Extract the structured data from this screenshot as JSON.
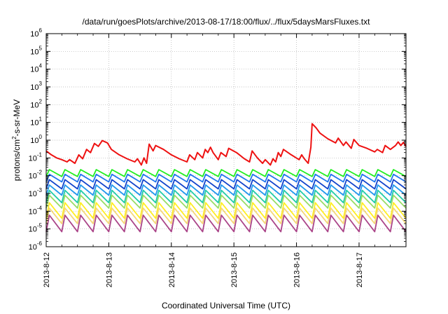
{
  "chart_data": {
    "type": "line",
    "title": "/data/run/goesPlots/archive/2013-08-17/18:00/flux/../flux/5daysMarsFluxes.txt",
    "xlabel": "Coordinated Universal Time (UTC)",
    "ylabel_prefix": "protons/cm",
    "ylabel_sup": "2",
    "ylabel_suffix": "-s-sr-MeV",
    "y_scale": "log",
    "ylim": [
      1e-06,
      1000000
    ],
    "xlim": [
      "2013-08-12T00:00",
      "2013-08-17T18:00"
    ],
    "grid": true,
    "legend": "none",
    "x_ticks": [
      "2013-8-12",
      "2013-8-13",
      "2013-8-14",
      "2013-8-15",
      "2013-8-16",
      "2013-8-17"
    ],
    "y_ticks": [
      {
        "base": "10",
        "exp": "-6"
      },
      {
        "base": "10",
        "exp": "-5"
      },
      {
        "base": "10",
        "exp": "-4"
      },
      {
        "base": "10",
        "exp": "-3"
      },
      {
        "base": "10",
        "exp": "-2"
      },
      {
        "base": "10",
        "exp": "-1"
      },
      {
        "base": "10",
        "exp": "0"
      },
      {
        "base": "10",
        "exp": "1"
      },
      {
        "base": "10",
        "exp": "2"
      },
      {
        "base": "10",
        "exp": "3"
      },
      {
        "base": "10",
        "exp": "4"
      },
      {
        "base": "10",
        "exp": "5"
      },
      {
        "base": "10",
        "exp": "6"
      }
    ],
    "series": [
      {
        "color": "#ee1111",
        "width": 2,
        "points": [
          [
            "2013-08-12T00:00",
            0.25
          ],
          [
            "2013-08-12T02:00",
            0.15
          ],
          [
            "2013-08-12T04:00",
            0.1
          ],
          [
            "2013-08-12T06:00",
            0.08
          ],
          [
            "2013-08-12T08:00",
            0.06
          ],
          [
            "2013-08-12T09:00",
            0.08
          ],
          [
            "2013-08-12T11:00",
            0.05
          ],
          [
            "2013-08-12T12:30",
            0.15
          ],
          [
            "2013-08-12T14:00",
            0.09
          ],
          [
            "2013-08-12T15:30",
            0.3
          ],
          [
            "2013-08-12T17:00",
            0.2
          ],
          [
            "2013-08-12T18:30",
            0.65
          ],
          [
            "2013-08-12T20:00",
            0.45
          ],
          [
            "2013-08-12T21:30",
            0.95
          ],
          [
            "2013-08-12T23:30",
            0.7
          ],
          [
            "2013-08-13T01:00",
            0.3
          ],
          [
            "2013-08-13T04:00",
            0.15
          ],
          [
            "2013-08-13T07:00",
            0.09
          ],
          [
            "2013-08-13T10:00",
            0.06
          ],
          [
            "2013-08-13T11:00",
            0.09
          ],
          [
            "2013-08-13T12:30",
            0.04
          ],
          [
            "2013-08-13T13:30",
            0.1
          ],
          [
            "2013-08-13T14:30",
            0.05
          ],
          [
            "2013-08-13T15:30",
            0.6
          ],
          [
            "2013-08-13T17:00",
            0.25
          ],
          [
            "2013-08-13T18:00",
            0.5
          ],
          [
            "2013-08-13T21:00",
            0.3
          ],
          [
            "2013-08-14T00:00",
            0.15
          ],
          [
            "2013-08-14T03:00",
            0.09
          ],
          [
            "2013-08-14T06:00",
            0.06
          ],
          [
            "2013-08-14T07:00",
            0.15
          ],
          [
            "2013-08-14T09:00",
            0.08
          ],
          [
            "2013-08-14T10:00",
            0.2
          ],
          [
            "2013-08-14T12:00",
            0.1
          ],
          [
            "2013-08-14T13:00",
            0.3
          ],
          [
            "2013-08-14T14:00",
            0.2
          ],
          [
            "2013-08-14T15:00",
            0.4
          ],
          [
            "2013-08-14T16:00",
            0.2
          ],
          [
            "2013-08-14T18:00",
            0.08
          ],
          [
            "2013-08-14T19:00",
            0.2
          ],
          [
            "2013-08-14T21:00",
            0.12
          ],
          [
            "2013-08-14T22:00",
            0.35
          ],
          [
            "2013-08-15T01:00",
            0.2
          ],
          [
            "2013-08-15T04:00",
            0.09
          ],
          [
            "2013-08-15T06:00",
            0.06
          ],
          [
            "2013-08-15T07:00",
            0.25
          ],
          [
            "2013-08-15T09:00",
            0.1
          ],
          [
            "2013-08-15T11:00",
            0.05
          ],
          [
            "2013-08-15T12:00",
            0.08
          ],
          [
            "2013-08-15T14:00",
            0.04
          ],
          [
            "2013-08-15T15:00",
            0.09
          ],
          [
            "2013-08-15T16:00",
            0.06
          ],
          [
            "2013-08-15T17:00",
            0.2
          ],
          [
            "2013-08-15T18:00",
            0.12
          ],
          [
            "2013-08-15T19:00",
            0.3
          ],
          [
            "2013-08-15T22:00",
            0.15
          ],
          [
            "2013-08-16T01:00",
            0.08
          ],
          [
            "2013-08-16T02:00",
            0.15
          ],
          [
            "2013-08-16T03:00",
            0.09
          ],
          [
            "2013-08-16T04:30",
            0.05
          ],
          [
            "2013-08-16T05:30",
            0.4
          ],
          [
            "2013-08-16T06:00",
            8.5
          ],
          [
            "2013-08-16T07:30",
            5
          ],
          [
            "2013-08-16T09:00",
            2.5
          ],
          [
            "2013-08-16T12:00",
            1.2
          ],
          [
            "2013-08-16T15:00",
            0.7
          ],
          [
            "2013-08-16T16:00",
            1.3
          ],
          [
            "2013-08-16T18:00",
            0.5
          ],
          [
            "2013-08-16T19:00",
            0.8
          ],
          [
            "2013-08-16T21:00",
            0.35
          ],
          [
            "2013-08-16T22:00",
            1.1
          ],
          [
            "2013-08-17T00:00",
            0.5
          ],
          [
            "2013-08-17T03:00",
            0.35
          ],
          [
            "2013-08-17T06:00",
            0.22
          ],
          [
            "2013-08-17T07:00",
            0.3
          ],
          [
            "2013-08-17T09:00",
            0.2
          ],
          [
            "2013-08-17T10:00",
            0.5
          ],
          [
            "2013-08-17T12:00",
            0.3
          ],
          [
            "2013-08-17T14:00",
            0.5
          ],
          [
            "2013-08-17T15:00",
            0.8
          ],
          [
            "2013-08-17T16:00",
            0.5
          ],
          [
            "2013-08-17T17:00",
            0.75
          ],
          [
            "2013-08-17T18:00",
            0.45
          ]
        ]
      },
      {
        "color": "#22ee22",
        "width": 1.8,
        "pattern": "sawtooth",
        "period_hours": 6,
        "peak": 0.022,
        "trough": 0.009
      },
      {
        "color": "#2277ee",
        "width": 1.8,
        "pattern": "sawtooth",
        "period_hours": 6,
        "peak": 0.012,
        "trough": 0.0045
      },
      {
        "color": "#1144cc",
        "width": 1.8,
        "pattern": "sawtooth",
        "period_hours": 6,
        "peak": 0.006,
        "trough": 0.0018
      },
      {
        "color": "#2299ee",
        "width": 1.8,
        "pattern": "sawtooth",
        "period_hours": 6,
        "peak": 0.003,
        "trough": 0.0008
      },
      {
        "color": "#22ccaa",
        "width": 1.8,
        "pattern": "sawtooth",
        "period_hours": 6,
        "peak": 0.0015,
        "trough": 0.0003
      },
      {
        "color": "#99dd66",
        "width": 1.8,
        "pattern": "sawtooth",
        "period_hours": 6,
        "peak": 0.0008,
        "trough": 0.00015
      },
      {
        "color": "#ffee22",
        "width": 1.8,
        "pattern": "sawtooth",
        "period_hours": 6,
        "peak": 0.0003,
        "trough": 4e-05
      },
      {
        "color": "#f5d87a",
        "width": 1.8,
        "pattern": "sawtooth",
        "period_hours": 6,
        "peak": 0.00015,
        "trough": 2e-05
      },
      {
        "color": "#aa4488",
        "width": 1.8,
        "pattern": "sawtooth",
        "period_hours": 6,
        "peak": 6e-05,
        "trough": 7e-06
      }
    ]
  }
}
